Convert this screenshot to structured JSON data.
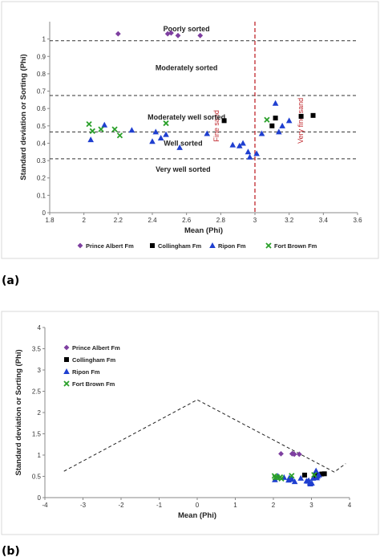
{
  "chart_data": [
    {
      "type": "scatter",
      "panel_label": "(a)",
      "xlabel": "Mean (Phi)",
      "ylabel": "Standard deviation or Sorting (Phi)",
      "xlim": [
        1.8,
        3.6
      ],
      "ylim": [
        0,
        1.1
      ],
      "xticks": [
        "1.8",
        "2",
        "2.2",
        "2.4",
        "2.6",
        "2.8",
        "3",
        "3.2",
        "3.4",
        "3.6"
      ],
      "yticks": [
        "0",
        "0.1",
        "0.2",
        "0.3",
        "0.4",
        "0.5",
        "0.6",
        "0.7",
        "0.8",
        "0.9",
        "1"
      ],
      "grid": false,
      "legend_position": "bottom",
      "sorting_boundaries": [
        0.99,
        0.675,
        0.465,
        0.31
      ],
      "zones": [
        {
          "label": "Poorly sorted",
          "x": 2.6,
          "y": 1.045
        },
        {
          "label": "Moderately sorted",
          "x": 2.6,
          "y": 0.82
        },
        {
          "label": "Moderately well sorted",
          "x": 2.6,
          "y": 0.535
        },
        {
          "label": "Well sorted",
          "x": 2.58,
          "y": 0.385
        },
        {
          "label": "Very well sorted",
          "x": 2.58,
          "y": 0.235
        }
      ],
      "vertical_line": {
        "x": 3.0,
        "left_label": "Fine sand",
        "right_label": "Very fine sand"
      },
      "series": [
        {
          "name": "Prince Albert Fm",
          "marker": "diamond",
          "color": "#7e3fa0",
          "points": [
            [
              2.2,
              1.03
            ],
            [
              2.49,
              1.03
            ],
            [
              2.51,
              1.035
            ],
            [
              2.55,
              1.02
            ],
            [
              2.68,
              1.02
            ]
          ]
        },
        {
          "name": "Collingham Fm",
          "marker": "square",
          "color": "#000000",
          "points": [
            [
              2.82,
              0.53
            ],
            [
              3.1,
              0.5
            ],
            [
              3.12,
              0.545
            ],
            [
              3.27,
              0.555
            ],
            [
              3.34,
              0.56
            ]
          ]
        },
        {
          "name": "Ripon Fm",
          "marker": "triangle",
          "color": "#1f3fd0",
          "points": [
            [
              2.04,
              0.42
            ],
            [
              2.12,
              0.505
            ],
            [
              2.28,
              0.475
            ],
            [
              2.4,
              0.41
            ],
            [
              2.42,
              0.465
            ],
            [
              2.45,
              0.43
            ],
            [
              2.48,
              0.45
            ],
            [
              2.56,
              0.375
            ],
            [
              2.72,
              0.455
            ],
            [
              2.87,
              0.39
            ],
            [
              2.91,
              0.385
            ],
            [
              2.93,
              0.4
            ],
            [
              2.96,
              0.35
            ],
            [
              2.97,
              0.32
            ],
            [
              3.01,
              0.34
            ],
            [
              3.04,
              0.455
            ],
            [
              3.12,
              0.63
            ],
            [
              3.14,
              0.465
            ],
            [
              3.16,
              0.5
            ],
            [
              3.2,
              0.53
            ]
          ]
        },
        {
          "name": "Fort Brown Fm",
          "marker": "x",
          "color": "#2aa02a",
          "points": [
            [
              2.03,
              0.51
            ],
            [
              2.05,
              0.47
            ],
            [
              2.1,
              0.48
            ],
            [
              2.18,
              0.48
            ],
            [
              2.21,
              0.445
            ],
            [
              2.48,
              0.515
            ],
            [
              3.07,
              0.535
            ]
          ]
        }
      ]
    },
    {
      "type": "scatter",
      "panel_label": "(b)",
      "xlabel": "Mean (Phi)",
      "ylabel": "Standard deviation or Sorting (Phi)",
      "xlim": [
        -4,
        4
      ],
      "ylim": [
        0,
        4
      ],
      "xticks": [
        "-4",
        "-3",
        "-2",
        "-1",
        "0",
        "1",
        "2",
        "3",
        "4"
      ],
      "yticks": [
        "0",
        "0.5",
        "1",
        "1.5",
        "2",
        "2.5",
        "3",
        "3.5",
        "4"
      ],
      "grid": false,
      "legend_position": "top-left",
      "dashed_envelope": [
        [
          -3.5,
          0.62
        ],
        [
          0.0,
          2.3
        ],
        [
          3.6,
          0.6
        ],
        [
          3.9,
          0.8
        ]
      ],
      "series": [
        {
          "name": "Prince Albert Fm",
          "marker": "diamond",
          "color": "#7e3fa0",
          "points": [
            [
              2.2,
              1.03
            ],
            [
              2.49,
              1.03
            ],
            [
              2.51,
              1.035
            ],
            [
              2.55,
              1.02
            ],
            [
              2.68,
              1.02
            ]
          ]
        },
        {
          "name": "Collingham Fm",
          "marker": "square",
          "color": "#000000",
          "points": [
            [
              2.82,
              0.53
            ],
            [
              3.1,
              0.5
            ],
            [
              3.12,
              0.545
            ],
            [
              3.27,
              0.555
            ],
            [
              3.34,
              0.56
            ]
          ]
        },
        {
          "name": "Ripon Fm",
          "marker": "triangle",
          "color": "#1f3fd0",
          "points": [
            [
              2.04,
              0.42
            ],
            [
              2.12,
              0.505
            ],
            [
              2.28,
              0.475
            ],
            [
              2.4,
              0.41
            ],
            [
              2.42,
              0.465
            ],
            [
              2.45,
              0.43
            ],
            [
              2.48,
              0.45
            ],
            [
              2.56,
              0.375
            ],
            [
              2.72,
              0.455
            ],
            [
              2.87,
              0.39
            ],
            [
              2.91,
              0.385
            ],
            [
              2.93,
              0.4
            ],
            [
              2.96,
              0.35
            ],
            [
              2.97,
              0.32
            ],
            [
              3.01,
              0.34
            ],
            [
              3.04,
              0.455
            ],
            [
              3.12,
              0.63
            ],
            [
              3.14,
              0.465
            ],
            [
              3.16,
              0.5
            ],
            [
              3.2,
              0.53
            ]
          ]
        },
        {
          "name": "Fort Brown Fm",
          "marker": "x",
          "color": "#2aa02a",
          "points": [
            [
              2.03,
              0.51
            ],
            [
              2.05,
              0.47
            ],
            [
              2.1,
              0.48
            ],
            [
              2.18,
              0.48
            ],
            [
              2.21,
              0.445
            ],
            [
              2.48,
              0.515
            ],
            [
              3.07,
              0.535
            ]
          ]
        }
      ]
    }
  ]
}
